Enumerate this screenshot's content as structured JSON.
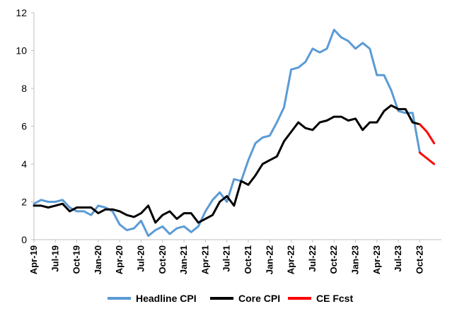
{
  "chart_data": {
    "type": "line",
    "title": "",
    "xlabel": "",
    "ylabel": "",
    "ylim": [
      0,
      12
    ],
    "yticks": [
      0,
      2,
      4,
      6,
      8,
      10,
      12
    ],
    "grid": false,
    "legend_position": "bottom",
    "x": [
      "Apr-19",
      "May-19",
      "Jun-19",
      "Jul-19",
      "Aug-19",
      "Sep-19",
      "Oct-19",
      "Nov-19",
      "Dec-19",
      "Jan-20",
      "Feb-20",
      "Mar-20",
      "Apr-20",
      "May-20",
      "Jun-20",
      "Jul-20",
      "Aug-20",
      "Sep-20",
      "Oct-20",
      "Nov-20",
      "Dec-20",
      "Jan-21",
      "Feb-21",
      "Mar-21",
      "Apr-21",
      "May-21",
      "Jun-21",
      "Jul-21",
      "Aug-21",
      "Sep-21",
      "Oct-21",
      "Nov-21",
      "Dec-21",
      "Jan-22",
      "Feb-22",
      "Mar-22",
      "Apr-22",
      "May-22",
      "Jun-22",
      "Jul-22",
      "Aug-22",
      "Sep-22",
      "Oct-22",
      "Nov-22",
      "Dec-22",
      "Jan-23",
      "Feb-23",
      "Mar-23",
      "Apr-23",
      "May-23",
      "Jun-23",
      "Jul-23",
      "Aug-23",
      "Sep-23",
      "Oct-23",
      "Nov-23",
      "Dec-23",
      "Jan-24"
    ],
    "xtick_labels": [
      "Apr-19",
      "Jul-19",
      "Oct-19",
      "Jan-20",
      "Apr-20",
      "Jul-20",
      "Oct-20",
      "Jan-21",
      "Apr-21",
      "Jul-21",
      "Oct-21",
      "Jan-22",
      "Apr-22",
      "Jul-22",
      "Oct-22",
      "Jan-23",
      "Apr-23",
      "Jul-23",
      "Oct-23"
    ],
    "series": [
      {
        "name": "Headline CPI",
        "color": "#5b9bd5",
        "values": [
          1.9,
          2.1,
          2.0,
          2.0,
          2.1,
          1.7,
          1.5,
          1.5,
          1.3,
          1.8,
          1.7,
          1.5,
          0.8,
          0.5,
          0.6,
          1.0,
          0.2,
          0.5,
          0.7,
          0.3,
          0.6,
          0.7,
          0.4,
          0.7,
          1.5,
          2.1,
          2.5,
          2.0,
          3.2,
          3.1,
          4.2,
          5.1,
          5.4,
          5.5,
          6.2,
          7.0,
          9.0,
          9.1,
          9.4,
          10.1,
          9.9,
          10.1,
          11.1,
          10.7,
          10.5,
          10.1,
          10.4,
          10.1,
          8.7,
          8.7,
          7.9,
          6.8,
          6.7,
          6.7,
          4.6,
          null,
          null,
          null
        ]
      },
      {
        "name": "Core CPI",
        "color": "#000000",
        "values": [
          1.8,
          1.8,
          1.7,
          1.8,
          1.9,
          1.5,
          1.7,
          1.7,
          1.7,
          1.4,
          1.6,
          1.6,
          1.5,
          1.3,
          1.2,
          1.4,
          1.8,
          0.9,
          1.3,
          1.5,
          1.1,
          1.4,
          1.4,
          0.9,
          1.1,
          1.3,
          2.0,
          2.3,
          1.8,
          3.1,
          2.9,
          3.4,
          4.0,
          4.2,
          4.4,
          5.2,
          5.7,
          6.2,
          5.9,
          5.8,
          6.2,
          6.3,
          6.5,
          6.5,
          6.3,
          6.4,
          5.8,
          6.2,
          6.2,
          6.8,
          7.1,
          6.9,
          6.9,
          6.2,
          6.1,
          null,
          null,
          null
        ]
      },
      {
        "name": "CE Fcst",
        "color": "#ff0000",
        "segments": [
          [
            null,
            null,
            null,
            null,
            null,
            null,
            null,
            null,
            null,
            null,
            null,
            null,
            null,
            null,
            null,
            null,
            null,
            null,
            null,
            null,
            null,
            null,
            null,
            null,
            null,
            null,
            null,
            null,
            null,
            null,
            null,
            null,
            null,
            null,
            null,
            null,
            null,
            null,
            null,
            null,
            null,
            null,
            null,
            null,
            null,
            null,
            null,
            null,
            null,
            null,
            null,
            null,
            null,
            null,
            4.6,
            4.3,
            4.0,
            null
          ],
          [
            null,
            null,
            null,
            null,
            null,
            null,
            null,
            null,
            null,
            null,
            null,
            null,
            null,
            null,
            null,
            null,
            null,
            null,
            null,
            null,
            null,
            null,
            null,
            null,
            null,
            null,
            null,
            null,
            null,
            null,
            null,
            null,
            null,
            null,
            null,
            null,
            null,
            null,
            null,
            null,
            null,
            null,
            null,
            null,
            null,
            null,
            null,
            null,
            null,
            null,
            null,
            null,
            null,
            null,
            6.1,
            5.7,
            5.1,
            null
          ]
        ]
      }
    ]
  }
}
